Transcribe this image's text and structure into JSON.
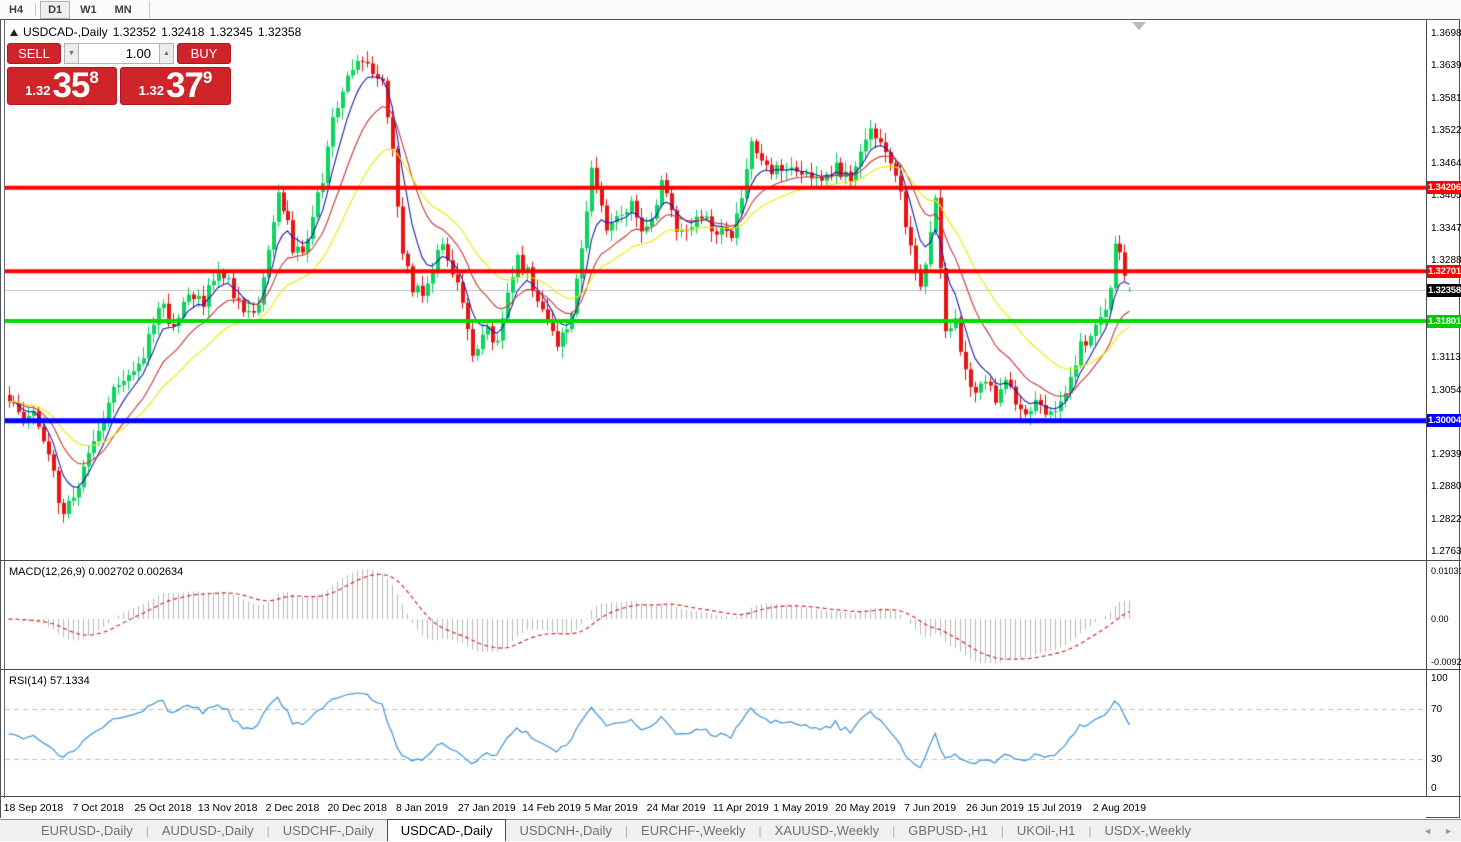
{
  "toolbar": {
    "timeframes": [
      {
        "label": "H4",
        "active": false
      },
      {
        "label": "D1",
        "active": true
      },
      {
        "label": "W1",
        "active": false
      },
      {
        "label": "MN",
        "active": false
      }
    ]
  },
  "chart_header": {
    "symbol": "USDCAD-,Daily",
    "open": "1.32352",
    "high": "1.32418",
    "low": "1.32345",
    "close": "1.32358"
  },
  "trade_panel": {
    "sell_label": "SELL",
    "buy_label": "BUY",
    "volume": "1.00",
    "sell_price": {
      "small": "1.32",
      "big": "35",
      "sup": "8"
    },
    "buy_price": {
      "small": "1.32",
      "big": "37",
      "sup": "9"
    }
  },
  "indicator_labels": {
    "macd": "MACD(12,26,9) 0.002702 0.002634",
    "rsi": "RSI(14) 57.1334"
  },
  "tabs": {
    "items": [
      {
        "label": "EURUSD-,Daily",
        "active": false
      },
      {
        "label": "AUDUSD-,Daily",
        "active": false
      },
      {
        "label": "USDCHF-,Daily",
        "active": false
      },
      {
        "label": "USDCAD-,Daily",
        "active": true
      },
      {
        "label": "USDCNH-,Daily",
        "active": false
      },
      {
        "label": "EURCHF-,Weekly",
        "active": false
      },
      {
        "label": "XAUUSD-,Weekly",
        "active": false
      },
      {
        "label": "GBPUSD-,H1",
        "active": false
      },
      {
        "label": "UKOil-,H1",
        "active": false
      },
      {
        "label": "USDX-,Weekly",
        "active": false
      }
    ],
    "scroll_left": "◄",
    "scroll_right": "►"
  },
  "chart_data": {
    "type": "candlestick",
    "symbol": "USDCAD-",
    "timeframe": "Daily",
    "last_ohlc": {
      "open": 1.32352,
      "high": 1.32418,
      "low": 1.32345,
      "close": 1.32358
    },
    "candle_count": 226,
    "bull_color": "#0cd45e",
    "bear_color": "#ea1313",
    "current_line_color": "#c4c4c4",
    "price_axis": {
      "top": 1.37215,
      "bottom": 1.27491,
      "ticks": [
        1.3698,
        1.36395,
        1.3581,
        1.35225,
        1.3464,
        1.34055,
        1.3347,
        1.32885,
        1.31715,
        1.3113,
        1.30545,
        1.2939,
        1.28805,
        1.2822,
        1.27635
      ]
    },
    "levels": [
      {
        "label": "1.34206",
        "price": 1.34206,
        "color": "#ff0000",
        "width": 4,
        "badge": "#ff0000"
      },
      {
        "label": "1.32701",
        "price": 1.32701,
        "color": "#ff0000",
        "width": 4,
        "badge": "#ff0000"
      },
      {
        "label": "1.32358",
        "price": 1.32358,
        "color": "#c4c4c4",
        "width": 1,
        "badge": "#000000"
      },
      {
        "label": "1.31801",
        "price": 1.31801,
        "color": "#00dc00",
        "width": 4,
        "badge": "#00ca00"
      },
      {
        "label": "1.30004",
        "price": 1.30004,
        "color": "#0000ff",
        "width": 5,
        "badge": "#0000ff"
      }
    ],
    "moving_averages": [
      {
        "type": "ema",
        "period": 6,
        "color": "#1b1bb4"
      },
      {
        "type": "ema",
        "period": 14,
        "color": "#c93838"
      },
      {
        "type": "ema",
        "period": 26,
        "color": "#ebeb00"
      }
    ],
    "macd": {
      "fast": 12,
      "slow": 26,
      "signal": 9,
      "value": 0.002702,
      "signal_value": 0.002634,
      "range": {
        "top": 0.01207,
        "bottom": -0.01075
      },
      "ticks": [
        {
          "label": "0.010311",
          "v": 0.010311
        },
        {
          "label": "0.00",
          "v": 0
        },
        {
          "label": "-0.009203",
          "v": -0.009203
        }
      ],
      "histogram_color": "#b9b9b9",
      "signal_color": "#d42f2f"
    },
    "rsi": {
      "period": 14,
      "value": 57.1334,
      "color": "#4093d8",
      "levels": [
        70,
        30
      ],
      "ticks": [
        {
          "label": "100",
          "v": 100
        },
        {
          "label": "70",
          "v": 70
        },
        {
          "label": "30",
          "v": 30
        },
        {
          "label": "0",
          "v": 0
        }
      ],
      "level_line_color": "#c0c0c0"
    },
    "dates": [
      {
        "label": "18 Sep 2018",
        "index": 5
      },
      {
        "label": "7 Oct 2018",
        "index": 18
      },
      {
        "label": "25 Oct 2018",
        "index": 31
      },
      {
        "label": "13 Nov 2018",
        "index": 44
      },
      {
        "label": "2 Dec 2018",
        "index": 57
      },
      {
        "label": "20 Dec 2018",
        "index": 70
      },
      {
        "label": "8 Jan 2019",
        "index": 83
      },
      {
        "label": "27 Jan 2019",
        "index": 96
      },
      {
        "label": "14 Feb 2019",
        "index": 109
      },
      {
        "label": "5 Mar 2019",
        "index": 121
      },
      {
        "label": "24 Mar 2019",
        "index": 134
      },
      {
        "label": "11 Apr 2019",
        "index": 147
      },
      {
        "label": "1 May 2019",
        "index": 159
      },
      {
        "label": "20 May 2019",
        "index": 172
      },
      {
        "label": "7 Jun 2019",
        "index": 185
      },
      {
        "label": "26 Jun 2019",
        "index": 198
      },
      {
        "label": "15 Jul 2019",
        "index": 210
      },
      {
        "label": "2 Aug 2019",
        "index": 223
      }
    ],
    "close_anchors": [
      [
        0,
        1.3035
      ],
      [
        3,
        1.2998
      ],
      [
        5,
        1.3008
      ],
      [
        8,
        1.2935
      ],
      [
        11,
        1.2827
      ],
      [
        13,
        1.2863
      ],
      [
        16,
        1.2944
      ],
      [
        18,
        1.2971
      ],
      [
        21,
        1.3053
      ],
      [
        24,
        1.3089
      ],
      [
        27,
        1.3125
      ],
      [
        30,
        1.3215
      ],
      [
        33,
        1.317
      ],
      [
        36,
        1.3233
      ],
      [
        39,
        1.3215
      ],
      [
        42,
        1.3279
      ],
      [
        44,
        1.3251
      ],
      [
        47,
        1.3188
      ],
      [
        50,
        1.3215
      ],
      [
        52,
        1.3306
      ],
      [
        54,
        1.3423
      ],
      [
        56,
        1.3351
      ],
      [
        57,
        1.3315
      ],
      [
        59,
        1.3306
      ],
      [
        61,
        1.3369
      ],
      [
        63,
        1.3441
      ],
      [
        65,
        1.3541
      ],
      [
        67,
        1.3604
      ],
      [
        69,
        1.3631
      ],
      [
        71,
        1.3649
      ],
      [
        73,
        1.3627
      ],
      [
        75,
        1.3613
      ],
      [
        77,
        1.3486
      ],
      [
        79,
        1.3306
      ],
      [
        81,
        1.3242
      ],
      [
        83,
        1.3233
      ],
      [
        85,
        1.327
      ],
      [
        87,
        1.3324
      ],
      [
        89,
        1.327
      ],
      [
        91,
        1.3215
      ],
      [
        93,
        1.3125
      ],
      [
        96,
        1.3161
      ],
      [
        98,
        1.3134
      ],
      [
        100,
        1.3233
      ],
      [
        102,
        1.3297
      ],
      [
        104,
        1.327
      ],
      [
        106,
        1.3215
      ],
      [
        109,
        1.3161
      ],
      [
        110,
        1.3134
      ],
      [
        113,
        1.3197
      ],
      [
        115,
        1.3306
      ],
      [
        117,
        1.3459
      ],
      [
        118,
        1.3414
      ],
      [
        120,
        1.3351
      ],
      [
        122,
        1.3369
      ],
      [
        125,
        1.3387
      ],
      [
        127,
        1.3342
      ],
      [
        129,
        1.3369
      ],
      [
        131,
        1.3423
      ],
      [
        134,
        1.3351
      ],
      [
        136,
        1.3342
      ],
      [
        139,
        1.3369
      ],
      [
        142,
        1.3342
      ],
      [
        145,
        1.3333
      ],
      [
        147,
        1.3405
      ],
      [
        149,
        1.3514
      ],
      [
        151,
        1.3469
      ],
      [
        154,
        1.345
      ],
      [
        157,
        1.3469
      ],
      [
        159,
        1.345
      ],
      [
        163,
        1.3436
      ],
      [
        166,
        1.346
      ],
      [
        169,
        1.3432
      ],
      [
        171,
        1.3487
      ],
      [
        173,
        1.3523
      ],
      [
        175,
        1.3496
      ],
      [
        177,
        1.346
      ],
      [
        179,
        1.3414
      ],
      [
        181,
        1.3306
      ],
      [
        183,
        1.3251
      ],
      [
        185,
        1.3333
      ],
      [
        186,
        1.3396
      ],
      [
        188,
        1.3161
      ],
      [
        190,
        1.3179
      ],
      [
        192,
        1.3089
      ],
      [
        194,
        1.3053
      ],
      [
        196,
        1.3062
      ],
      [
        198,
        1.3044
      ],
      [
        200,
        1.3071
      ],
      [
        202,
        1.3035
      ],
      [
        204,
        1.3017
      ],
      [
        206,
        1.3035
      ],
      [
        208,
        1.3008
      ],
      [
        210,
        1.3026
      ],
      [
        213,
        1.308
      ],
      [
        215,
        1.3134
      ],
      [
        217,
        1.3152
      ],
      [
        219,
        1.3188
      ],
      [
        221,
        1.3233
      ],
      [
        222,
        1.3324
      ],
      [
        223,
        1.3297
      ],
      [
        224,
        1.3251
      ],
      [
        225,
        1.32358
      ]
    ]
  }
}
